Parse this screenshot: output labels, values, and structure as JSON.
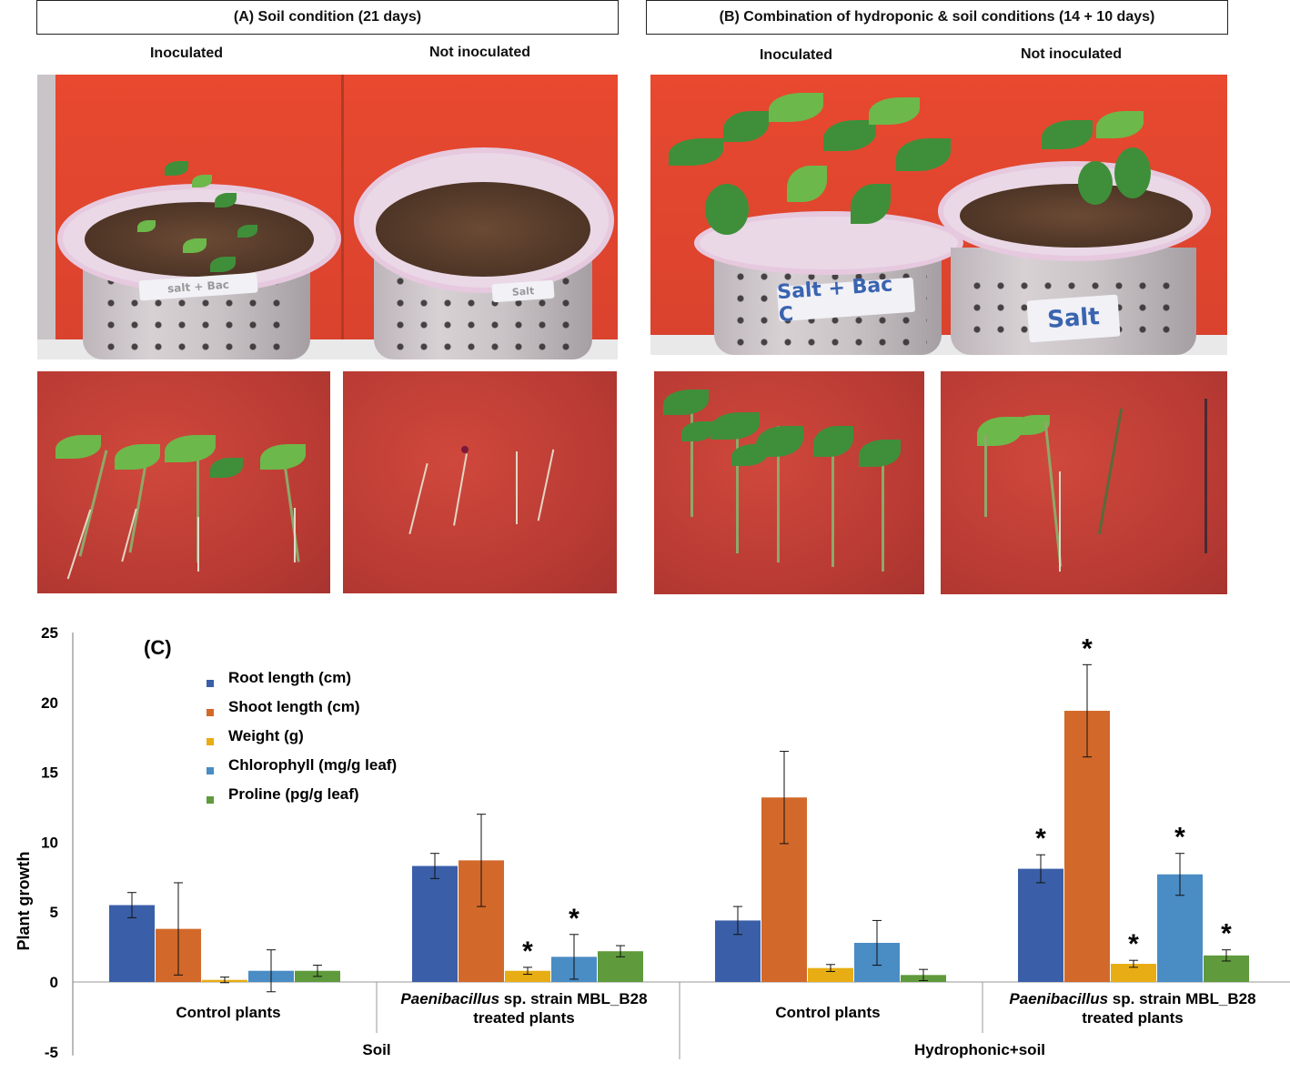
{
  "panel_a": {
    "title": "(A) Soil condition (21 days)",
    "col_left": "Inoculated",
    "col_right": "Not inoculated",
    "label_left": "salt + Bac",
    "label_right": "Salt"
  },
  "panel_b": {
    "title": "(B) Combination of hydroponic & soil conditions (14 + 10 days)",
    "col_left": "Inoculated",
    "col_right": "Not inoculated",
    "label_left": "Salt + Bac C",
    "label_right": "Salt"
  },
  "chart_data": {
    "type": "bar",
    "panel_label": "(C)",
    "ylabel": "Plant  growth",
    "ylim": [
      -5,
      25
    ],
    "yticks": [
      "25",
      "20",
      "15",
      "10",
      "5",
      "0",
      "-5"
    ],
    "groups": [
      {
        "label": "Control plants",
        "italic_prefix": "",
        "label_line2": "",
        "values": [
          5.5,
          3.8,
          0.15,
          0.8,
          0.8
        ],
        "errors": [
          0.9,
          3.3,
          0.2,
          1.5,
          0.4
        ],
        "stars": [
          false,
          false,
          false,
          false,
          false
        ]
      },
      {
        "label": " sp. strain MBL_B28",
        "italic_prefix": "Paenibacillus",
        "label_line2": "treated plants",
        "values": [
          8.3,
          8.7,
          0.8,
          1.8,
          2.2
        ],
        "errors": [
          0.9,
          3.3,
          0.25,
          1.6,
          0.4
        ],
        "stars": [
          false,
          false,
          true,
          true,
          false
        ]
      },
      {
        "label": "Control plants",
        "italic_prefix": "",
        "label_line2": "",
        "values": [
          4.4,
          13.2,
          1.0,
          2.8,
          0.5
        ],
        "errors": [
          1.0,
          3.3,
          0.25,
          1.6,
          0.4
        ],
        "stars": [
          false,
          false,
          false,
          false,
          false
        ]
      },
      {
        "label": " sp. strain MBL_B28",
        "italic_prefix": "Paenibacillus",
        "label_line2": "treated plants",
        "values": [
          8.1,
          19.4,
          1.3,
          7.7,
          1.9
        ],
        "errors": [
          1.0,
          3.3,
          0.25,
          1.5,
          0.4
        ],
        "stars": [
          true,
          true,
          true,
          true,
          true
        ]
      }
    ],
    "conditions": [
      "Soil",
      "Hydrophonic+soil"
    ],
    "series": [
      {
        "name": "Root length (cm)",
        "color": "#3a5fa8"
      },
      {
        "name": "Shoot length (cm)",
        "color": "#d2692a"
      },
      {
        "name": "Weight (g)",
        "color": "#e8ad14"
      },
      {
        "name": "Chlorophyll (mg/g leaf)",
        "color": "#4a8cc4"
      },
      {
        "name": "Proline (pg/g leaf)",
        "color": "#5f9a3c"
      }
    ],
    "star_symbol": "*",
    "legend_position": "top-left",
    "grid": false
  }
}
